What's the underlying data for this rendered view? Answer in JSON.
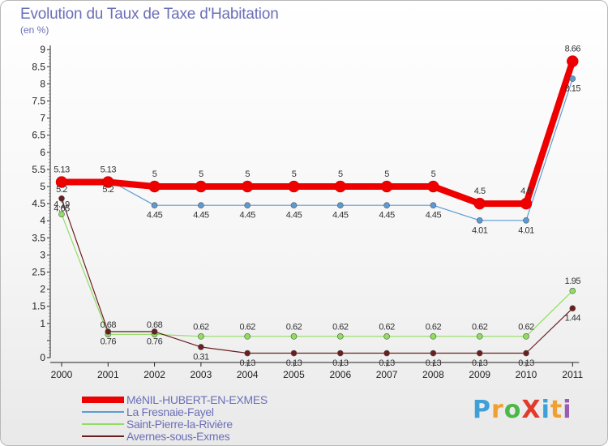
{
  "title": "Evolution du Taux de Taxe d'Habitation",
  "subtitle": "(en %)",
  "logo": {
    "text": "ProXiti",
    "colors": [
      "#3fa0d8",
      "#f0a030",
      "#4cb848",
      "#e23a2a",
      "#3fa0d8",
      "#f0a030",
      "#9a5bb0"
    ]
  },
  "chart_data": {
    "type": "line",
    "title": "Evolution du Taux de Taxe d'Habitation",
    "ylabel": "(en %)",
    "categories": [
      "2000",
      "2001",
      "2002",
      "2003",
      "2004",
      "2005",
      "2006",
      "2007",
      "2008",
      "2009",
      "2010",
      "2011"
    ],
    "yticks": [
      "0",
      "",
      "1",
      "1.5",
      "2",
      "2.5",
      "3",
      "3.5",
      "4",
      "4.5",
      "5",
      "5.5",
      "6",
      "6.5",
      "7",
      "7.5",
      "8",
      "8.5",
      "9"
    ],
    "ylim": [
      0,
      9
    ],
    "grid": false,
    "legend": "bottom-left",
    "series": [
      {
        "name": "MéNIL-HUBERT-EN-EXMES",
        "color": "#ee0000",
        "width": 8,
        "marker": 7,
        "values": [
          5.13,
          5.13,
          5,
          5,
          5,
          5,
          5,
          5,
          5,
          4.5,
          4.5,
          8.66
        ],
        "labels": [
          "5.13",
          "5.13",
          "5",
          "5",
          "5",
          "5",
          "5",
          "5",
          "5",
          "4.5",
          "4.5",
          "8.66"
        ],
        "labelPos": "above"
      },
      {
        "name": "La Fresnaie-Fayel",
        "color": "#5b9bd5",
        "width": 1.2,
        "marker": 3.5,
        "values": [
          5.2,
          5.2,
          4.45,
          4.45,
          4.45,
          4.45,
          4.45,
          4.45,
          4.45,
          4.01,
          4.01,
          8.15
        ],
        "labels": [
          "5.2",
          "5.2",
          "4.45",
          "4.45",
          "4.45",
          "4.45",
          "4.45",
          "4.45",
          "4.45",
          "4.01",
          "4.01",
          "8.15"
        ],
        "labelPos": "below"
      },
      {
        "name": "Saint-Pierre-la-Rivière",
        "color": "#90dd60",
        "width": 1.2,
        "marker": 3.5,
        "values": [
          4.19,
          0.68,
          0.68,
          0.62,
          0.62,
          0.62,
          0.62,
          0.62,
          0.62,
          0.62,
          0.62,
          1.95
        ],
        "labels": [
          "4.19",
          "0.68",
          "0.68",
          "0.62",
          "0.62",
          "0.62",
          "0.62",
          "0.62",
          "0.62",
          "0.62",
          "0.62",
          "1.95"
        ],
        "labelPos": "above"
      },
      {
        "name": "Avernes-sous-Exmes",
        "color": "#6b1e1e",
        "width": 1.2,
        "marker": 3.5,
        "values": [
          4.65,
          0.76,
          0.76,
          0.31,
          0.13,
          0.13,
          0.13,
          0.13,
          0.13,
          0.13,
          0.13,
          1.44
        ],
        "labels": [
          "4.65",
          "0.76",
          "0.76",
          "0.31",
          "0.13",
          "0.13",
          "0.13",
          "0.13",
          "0.13",
          "0.13",
          "0.13",
          "1.44"
        ],
        "labelPos": "below"
      }
    ]
  }
}
